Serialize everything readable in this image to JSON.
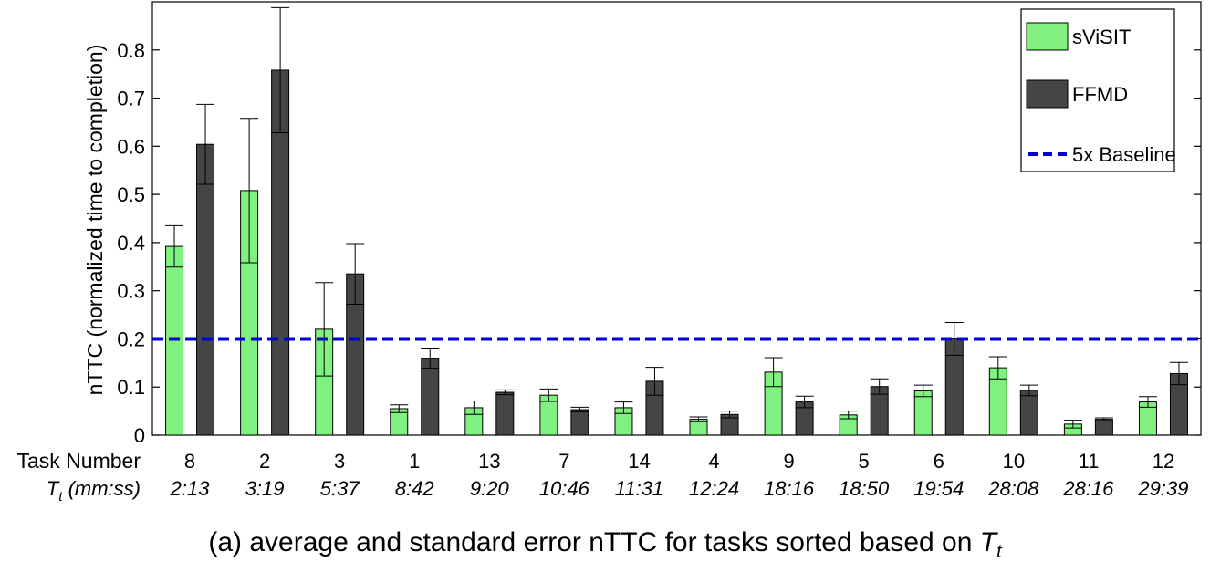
{
  "chart_data": {
    "type": "bar",
    "ylabel": "nTTC (normalized time to completion)",
    "ylim": [
      0,
      0.9
    ],
    "yticks": [
      "0",
      "0.1",
      "0.2",
      "0.3",
      "0.4",
      "0.5",
      "0.6",
      "0.7",
      "0.8"
    ],
    "row_labels": {
      "task_number": "Task Number",
      "tt_main": "T",
      "tt_sub": "t",
      "tt_rest": " (mm:ss)"
    },
    "categories": [
      "8",
      "2",
      "3",
      "1",
      "13",
      "7",
      "14",
      "4",
      "9",
      "5",
      "6",
      "10",
      "11",
      "12"
    ],
    "times": [
      "2:13",
      "3:19",
      "5:37",
      "8:42",
      "9:20",
      "10:46",
      "11:31",
      "12:24",
      "18:16",
      "18:50",
      "19:54",
      "28:08",
      "28:16",
      "29:39"
    ],
    "series": [
      {
        "name": "sViSIT",
        "color": "#80f080",
        "values": [
          0.392,
          0.508,
          0.22,
          0.055,
          0.057,
          0.083,
          0.057,
          0.033,
          0.131,
          0.042,
          0.092,
          0.14,
          0.023,
          0.069
        ],
        "errors": [
          0.043,
          0.15,
          0.097,
          0.008,
          0.014,
          0.013,
          0.012,
          0.005,
          0.03,
          0.008,
          0.012,
          0.023,
          0.008,
          0.011
        ]
      },
      {
        "name": "FFMD",
        "color": "#454545",
        "values": [
          0.604,
          0.758,
          0.335,
          0.16,
          0.089,
          0.053,
          0.112,
          0.043,
          0.069,
          0.101,
          0.2,
          0.093,
          0.033,
          0.128
        ],
        "errors": [
          0.083,
          0.13,
          0.063,
          0.021,
          0.005,
          0.005,
          0.029,
          0.007,
          0.012,
          0.016,
          0.034,
          0.011,
          0.003,
          0.023
        ]
      }
    ],
    "baseline": {
      "name": "5x Baseline",
      "value": 0.2,
      "color": "#0000dd"
    },
    "legend_position": "top-right",
    "caption_main": "(a) average and standard error nTTC for tasks sorted based on ",
    "caption_var": "T",
    "caption_sub": "t"
  }
}
